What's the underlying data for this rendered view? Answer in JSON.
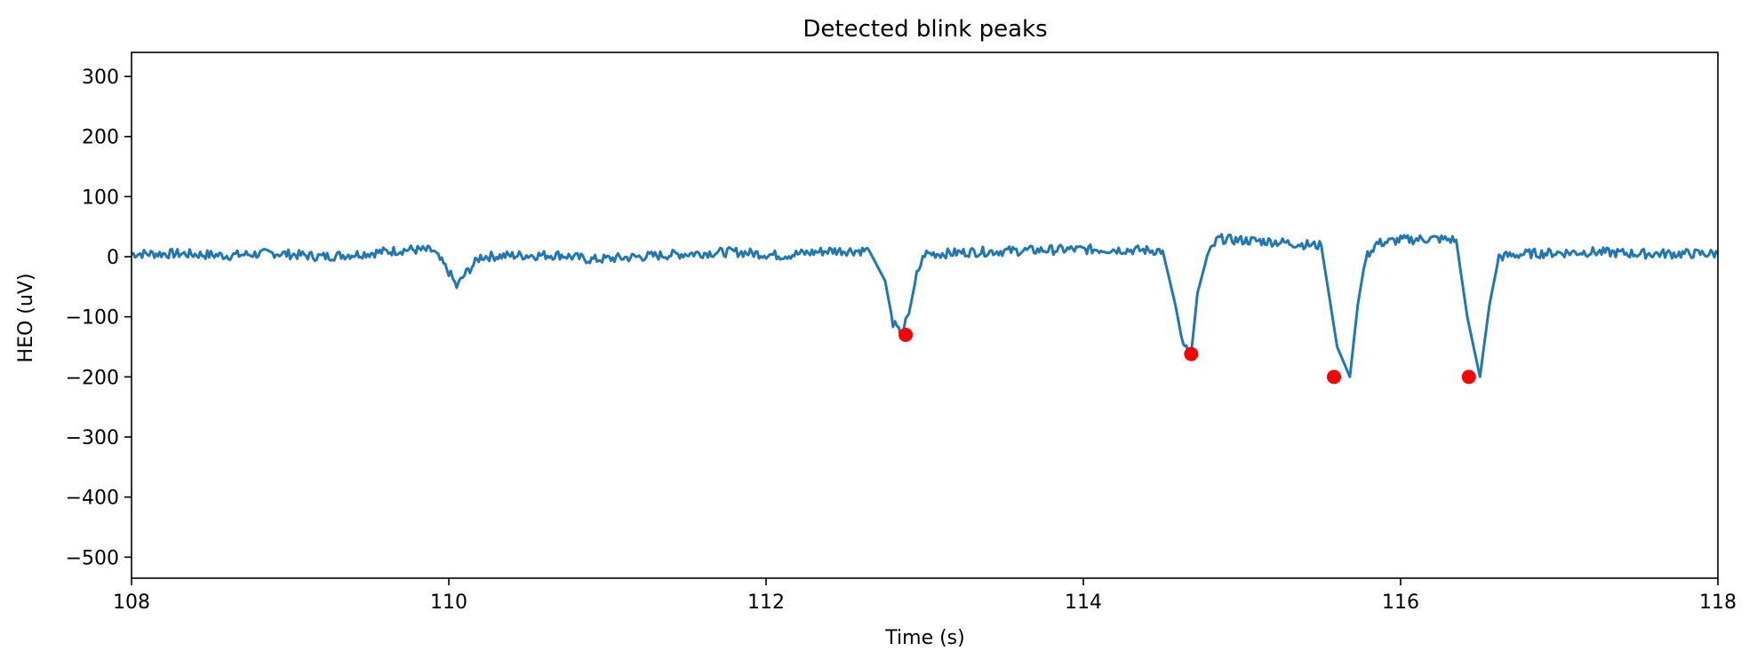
{
  "chart_data": {
    "type": "line",
    "title": "Detected blink peaks",
    "xlabel": "Time (s)",
    "ylabel": "HEO (uV)",
    "xlim": [
      108,
      118
    ],
    "ylim": [
      -535,
      340
    ],
    "x_ticks": [
      108,
      110,
      112,
      114,
      116,
      118
    ],
    "x_tick_labels": [
      "108",
      "110",
      "112",
      "114",
      "116",
      "118"
    ],
    "y_ticks": [
      300,
      200,
      100,
      0,
      -100,
      -200,
      -300,
      -400,
      -500
    ],
    "y_tick_labels": [
      "300",
      "200",
      "100",
      "0",
      "−100",
      "−200",
      "−300",
      "−400",
      "−500"
    ],
    "grid": false,
    "series": [
      {
        "role": "signal",
        "color": "#1f77b4",
        "x": [
          108.0,
          108.3,
          108.6,
          108.9,
          109.2,
          109.5,
          109.75,
          109.9,
          110.0,
          110.05,
          110.1,
          110.2,
          110.4,
          110.7,
          110.9,
          111.2,
          111.5,
          111.8,
          112.1,
          112.4,
          112.65,
          112.75,
          112.8,
          112.85,
          112.9,
          112.95,
          113.0,
          113.1,
          113.3,
          113.6,
          113.9,
          114.2,
          114.5,
          114.58,
          114.63,
          114.68,
          114.72,
          114.78,
          114.85,
          114.95,
          115.2,
          115.5,
          115.6,
          115.68,
          115.73,
          115.78,
          115.85,
          116.0,
          116.2,
          116.35,
          116.42,
          116.5,
          116.56,
          116.62,
          116.8,
          117.2,
          117.5,
          117.8,
          118.0
        ],
        "y": [
          5,
          5,
          2,
          6,
          0,
          6,
          12,
          10,
          -25,
          -50,
          -30,
          0,
          2,
          3,
          -5,
          0,
          5,
          8,
          2,
          10,
          10,
          -40,
          -110,
          -130,
          -95,
          -30,
          5,
          5,
          8,
          10,
          12,
          12,
          10,
          -80,
          -150,
          -160,
          -60,
          0,
          30,
          28,
          25,
          18,
          -150,
          -200,
          -80,
          0,
          22,
          28,
          30,
          28,
          -100,
          -200,
          -80,
          0,
          5,
          8,
          5,
          5,
          5
        ]
      }
    ],
    "peaks": {
      "color": "#ff0000",
      "x": [
        112.88,
        114.68,
        115.58,
        116.43
      ],
      "y": [
        -130,
        -162,
        -200,
        -200
      ]
    }
  }
}
